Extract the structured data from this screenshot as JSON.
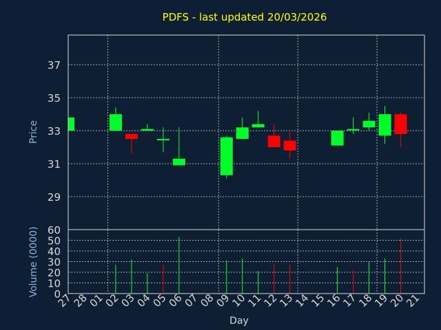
{
  "chart_data": [
    {
      "type": "candlestick",
      "title": "PDFS - last updated 20/03/2026",
      "ylabel": "Price",
      "ylim": [
        27,
        38.8
      ],
      "yticks": [
        29,
        31,
        33,
        35,
        37
      ],
      "grid": true,
      "categories": [
        "27",
        "28",
        "01",
        "02",
        "03",
        "04",
        "05",
        "06",
        "07",
        "08",
        "09",
        "10",
        "11",
        "12",
        "13",
        "14",
        "15",
        "16",
        "17",
        "18",
        "19",
        "20",
        "21"
      ],
      "candles": [
        {
          "day": "27",
          "open": 33.0,
          "close": 33.8,
          "low": 33.0,
          "high": 33.8
        },
        {
          "day": "02",
          "open": 33.0,
          "close": 34.0,
          "low": 33.0,
          "high": 34.4
        },
        {
          "day": "03",
          "open": 32.8,
          "close": 32.5,
          "low": 31.6,
          "high": 32.8
        },
        {
          "day": "04",
          "open": 33.0,
          "close": 33.1,
          "low": 33.0,
          "high": 33.4
        },
        {
          "day": "05",
          "open": 32.5,
          "close": 32.5,
          "low": 31.7,
          "high": 33.2
        },
        {
          "day": "06",
          "open": 30.9,
          "close": 31.3,
          "low": 30.9,
          "high": 33.2
        },
        {
          "day": "09",
          "open": 30.3,
          "close": 32.6,
          "low": 30.1,
          "high": 32.7
        },
        {
          "day": "10",
          "open": 32.5,
          "close": 33.2,
          "low": 32.5,
          "high": 33.8
        },
        {
          "day": "11",
          "open": 33.2,
          "close": 33.4,
          "low": 33.2,
          "high": 34.2
        },
        {
          "day": "12",
          "open": 32.7,
          "close": 32.0,
          "low": 32.0,
          "high": 33.4
        },
        {
          "day": "13",
          "open": 32.4,
          "close": 31.8,
          "low": 31.3,
          "high": 33.0
        },
        {
          "day": "16",
          "open": 32.1,
          "close": 33.0,
          "low": 32.1,
          "high": 33.0
        },
        {
          "day": "17",
          "open": 33.1,
          "close": 33.1,
          "low": 32.8,
          "high": 33.8
        },
        {
          "day": "18",
          "open": 33.2,
          "close": 33.6,
          "low": 33.0,
          "high": 34.1
        },
        {
          "day": "19",
          "open": 32.7,
          "close": 34.0,
          "low": 32.2,
          "high": 34.5
        },
        {
          "day": "20",
          "open": 34.0,
          "close": 32.8,
          "low": 32.0,
          "high": 34.1
        }
      ]
    },
    {
      "type": "bar",
      "ylabel": "Volume (0000)",
      "xlabel": "Day",
      "ylim": [
        0,
        60
      ],
      "yticks": [
        0,
        10,
        20,
        30,
        40,
        50,
        60
      ],
      "grid": true,
      "categories": [
        "27",
        "28",
        "01",
        "02",
        "03",
        "04",
        "05",
        "06",
        "07",
        "08",
        "09",
        "10",
        "11",
        "12",
        "13",
        "14",
        "15",
        "16",
        "17",
        "18",
        "19",
        "20",
        "21"
      ],
      "bars": [
        {
          "day": "02",
          "value": 27,
          "direction": "up"
        },
        {
          "day": "03",
          "value": 32,
          "direction": "up"
        },
        {
          "day": "04",
          "value": 19,
          "direction": "up"
        },
        {
          "day": "05",
          "value": 27,
          "direction": "down"
        },
        {
          "day": "06",
          "value": 53,
          "direction": "up"
        },
        {
          "day": "09",
          "value": 31,
          "direction": "up"
        },
        {
          "day": "10",
          "value": 33,
          "direction": "up"
        },
        {
          "day": "11",
          "value": 21,
          "direction": "up"
        },
        {
          "day": "12",
          "value": 28,
          "direction": "down"
        },
        {
          "day": "13",
          "value": 27,
          "direction": "down"
        },
        {
          "day": "16",
          "value": 25,
          "direction": "up"
        },
        {
          "day": "17",
          "value": 22,
          "direction": "down"
        },
        {
          "day": "18",
          "value": 30,
          "direction": "up"
        },
        {
          "day": "19",
          "value": 33,
          "direction": "up"
        },
        {
          "day": "20",
          "value": 52,
          "direction": "down"
        }
      ]
    }
  ],
  "colors": {
    "background": "#0f1f33",
    "frame": "#d8d8d8",
    "grid": "#d8d8d8",
    "up": "#00ff2a",
    "down": "#ff0000",
    "title": "#ffff00",
    "axis_label": "#8fb0d8",
    "tick_label": "#d8d8d8"
  }
}
